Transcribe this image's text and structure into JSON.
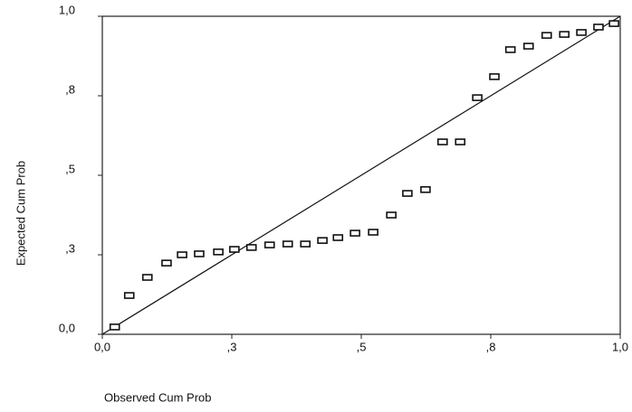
{
  "chart_data": {
    "type": "scatter",
    "x_label": "Observed Cum Prob",
    "y_label": "Expected Cum Prob",
    "xlim": [
      0,
      1
    ],
    "ylim": [
      0,
      1
    ],
    "xticks": [
      {
        "value": 0,
        "label": "0,0"
      },
      {
        "value": 0.25,
        "label": ",3"
      },
      {
        "value": 0.5,
        "label": ",5"
      },
      {
        "value": 0.75,
        "label": ",8"
      },
      {
        "value": 1,
        "label": "1,0"
      }
    ],
    "yticks": [
      {
        "value": 0,
        "label": "0,0"
      },
      {
        "value": 0.25,
        "label": ",3"
      },
      {
        "value": 0.5,
        "label": ",5"
      },
      {
        "value": 0.75,
        "label": ",8"
      },
      {
        "value": 1,
        "label": "1,0"
      }
    ],
    "color": "#111111",
    "x": [
      0.024,
      0.052,
      0.087,
      0.124,
      0.154,
      0.187,
      0.224,
      0.255,
      0.288,
      0.323,
      0.358,
      0.392,
      0.425,
      0.455,
      0.488,
      0.523,
      0.558,
      0.589,
      0.624,
      0.657,
      0.691,
      0.724,
      0.757,
      0.788,
      0.823,
      0.858,
      0.892,
      0.925,
      0.958,
      0.988
    ],
    "values": [
      0.023,
      0.122,
      0.179,
      0.224,
      0.25,
      0.253,
      0.259,
      0.267,
      0.273,
      0.281,
      0.284,
      0.284,
      0.295,
      0.304,
      0.318,
      0.321,
      0.375,
      0.443,
      0.455,
      0.605,
      0.605,
      0.744,
      0.81,
      0.895,
      0.906,
      0.94,
      0.943,
      0.949,
      0.966,
      0.977
    ]
  }
}
